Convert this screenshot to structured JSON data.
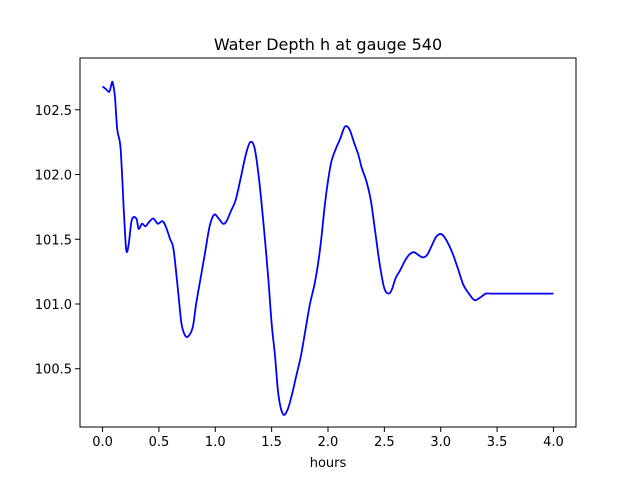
{
  "chart_data": {
    "type": "line",
    "title": "Water Depth h at gauge 540",
    "xlabel": "hours",
    "ylabel": "",
    "xlim": [
      -0.2,
      4.2
    ],
    "ylim": [
      100.05,
      102.9
    ],
    "xticks": [
      0.0,
      0.5,
      1.0,
      1.5,
      2.0,
      2.5,
      3.0,
      3.5,
      4.0
    ],
    "xtick_labels": [
      "0.0",
      "0.5",
      "1.0",
      "1.5",
      "2.0",
      "2.5",
      "3.0",
      "3.5",
      "4.0"
    ],
    "yticks": [
      100.5,
      101.0,
      101.5,
      102.0,
      102.5
    ],
    "ytick_labels": [
      "100.5",
      "101.0",
      "101.5",
      "102.0",
      "102.5"
    ],
    "grid": false,
    "series": [
      {
        "color": "#0000ff",
        "x": [
          0.0,
          0.03,
          0.06,
          0.08,
          0.09,
          0.11,
          0.13,
          0.16,
          0.19,
          0.21,
          0.23,
          0.26,
          0.3,
          0.32,
          0.35,
          0.38,
          0.41,
          0.45,
          0.49,
          0.53,
          0.56,
          0.6,
          0.63,
          0.67,
          0.7,
          0.73,
          0.76,
          0.8,
          0.83,
          0.87,
          0.91,
          0.95,
          0.99,
          1.03,
          1.07,
          1.1,
          1.14,
          1.18,
          1.22,
          1.27,
          1.31,
          1.35,
          1.39,
          1.43,
          1.47,
          1.5,
          1.53,
          1.56,
          1.6,
          1.64,
          1.68,
          1.72,
          1.76,
          1.8,
          1.84,
          1.88,
          1.91,
          1.94,
          1.97,
          2.0,
          2.03,
          2.07,
          2.11,
          2.15,
          2.19,
          2.23,
          2.27,
          2.3,
          2.34,
          2.38,
          2.42,
          2.46,
          2.5,
          2.54,
          2.57,
          2.6,
          2.64,
          2.68,
          2.72,
          2.76,
          2.8,
          2.84,
          2.88,
          2.92,
          2.96,
          3.0,
          3.03,
          3.07,
          3.11,
          3.15,
          3.2,
          3.25,
          3.3,
          3.35,
          3.4,
          3.45,
          3.5,
          3.55,
          3.6,
          3.64,
          3.68,
          3.72,
          3.76,
          3.8,
          3.84,
          3.88,
          3.92,
          3.96,
          4.0
        ],
        "y": [
          102.68,
          102.66,
          102.64,
          102.7,
          102.71,
          102.6,
          102.35,
          102.2,
          101.7,
          101.42,
          101.45,
          101.65,
          101.66,
          101.58,
          101.62,
          101.6,
          101.63,
          101.66,
          101.62,
          101.64,
          101.6,
          101.5,
          101.42,
          101.1,
          100.85,
          100.76,
          100.75,
          100.82,
          101.0,
          101.2,
          101.4,
          101.6,
          101.69,
          101.66,
          101.62,
          101.64,
          101.72,
          101.8,
          101.95,
          102.15,
          102.25,
          102.2,
          101.95,
          101.6,
          101.2,
          100.85,
          100.6,
          100.3,
          100.15,
          100.18,
          100.3,
          100.45,
          100.6,
          100.8,
          101.0,
          101.15,
          101.3,
          101.5,
          101.75,
          101.95,
          102.1,
          102.2,
          102.28,
          102.37,
          102.35,
          102.25,
          102.15,
          102.05,
          101.95,
          101.8,
          101.55,
          101.3,
          101.12,
          101.08,
          101.12,
          101.2,
          101.26,
          101.33,
          101.38,
          101.4,
          101.38,
          101.36,
          101.38,
          101.45,
          101.52,
          101.54,
          101.52,
          101.46,
          101.38,
          101.28,
          101.15,
          101.08,
          101.03,
          101.05,
          101.08,
          101.08,
          101.08,
          101.08,
          101.08,
          101.08,
          101.08,
          101.08,
          101.08,
          101.08,
          101.08,
          101.08,
          101.08,
          101.08,
          101.08
        ]
      }
    ]
  }
}
